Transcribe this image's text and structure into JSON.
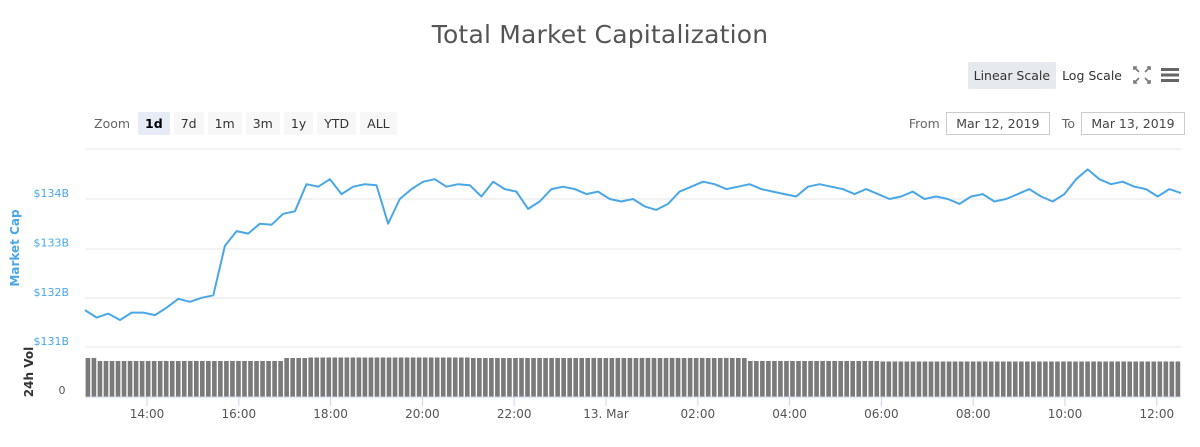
{
  "header": {
    "title": "Total Market Capitalization"
  },
  "toolbar": {
    "linear_scale": "Linear Scale",
    "log_scale": "Log Scale",
    "fullscreen_icon": "fullscreen-icon",
    "menu_icon": "hamburger-menu-icon"
  },
  "zoom": {
    "label": "Zoom",
    "buttons": [
      "1d",
      "7d",
      "1m",
      "3m",
      "1y",
      "YTD",
      "ALL"
    ],
    "active": "1d"
  },
  "range": {
    "from_label": "From",
    "from_value": "Mar 12, 2019",
    "to_label": "To",
    "to_value": "Mar 13, 2019"
  },
  "colors": {
    "line": "#4aa7e6",
    "bars": "#7a7a7a",
    "grid": "#e6e6e6",
    "axis_title_left": "#4aa7e6",
    "axis_title_vol": "#333333"
  },
  "chart_data": {
    "type": "line",
    "title": "Total Market Capitalization",
    "xlabel": "",
    "ylabel": "Market Cap",
    "ylim": [
      131,
      134.9
    ],
    "yticks": [
      "$131B",
      "$132B",
      "$133B",
      "$134B"
    ],
    "xticks": [
      "14:00",
      "16:00",
      "18:00",
      "20:00",
      "22:00",
      "13. Mar",
      "02:00",
      "04:00",
      "06:00",
      "08:00",
      "10:00",
      "12:00"
    ],
    "grid": true,
    "legend": null,
    "series": [
      {
        "name": "Market Cap",
        "unit": "USD billions",
        "x": [
          "13:15",
          "13:30",
          "13:45",
          "14:00",
          "14:15",
          "14:30",
          "14:45",
          "15:00",
          "15:15",
          "15:30",
          "15:45",
          "16:00",
          "16:15",
          "16:30",
          "16:45",
          "17:00",
          "17:15",
          "17:30",
          "17:45",
          "18:00",
          "18:15",
          "18:30",
          "18:45",
          "19:00",
          "19:15",
          "19:30",
          "19:45",
          "20:00",
          "20:15",
          "20:30",
          "20:45",
          "21:00",
          "21:15",
          "21:30",
          "21:45",
          "22:00",
          "22:15",
          "22:30",
          "22:45",
          "23:00",
          "23:15",
          "23:30",
          "23:45",
          "00:00",
          "00:15",
          "00:30",
          "00:45",
          "01:00",
          "01:15",
          "01:30",
          "01:45",
          "02:00",
          "02:15",
          "02:30",
          "02:45",
          "03:00",
          "03:15",
          "03:30",
          "03:45",
          "04:00",
          "04:15",
          "04:30",
          "04:45",
          "05:00",
          "05:15",
          "05:30",
          "05:45",
          "06:00",
          "06:15",
          "06:30",
          "06:45",
          "07:00",
          "07:15",
          "07:30",
          "07:45",
          "08:00",
          "08:15",
          "08:30",
          "08:45",
          "09:00",
          "09:15",
          "09:30",
          "09:45",
          "10:00",
          "10:15",
          "10:30",
          "10:45",
          "11:00",
          "11:15",
          "11:30",
          "11:45",
          "12:00",
          "12:15",
          "12:30",
          "12:45"
        ],
        "values": [
          131.75,
          131.6,
          131.68,
          131.55,
          131.7,
          131.7,
          131.65,
          131.8,
          131.98,
          131.92,
          132.0,
          132.05,
          133.05,
          133.35,
          133.3,
          133.5,
          133.48,
          133.7,
          133.75,
          134.3,
          134.25,
          134.4,
          134.1,
          134.25,
          134.3,
          134.28,
          133.5,
          134.0,
          134.2,
          134.35,
          134.4,
          134.25,
          134.3,
          134.28,
          134.05,
          134.35,
          134.2,
          134.15,
          133.8,
          133.95,
          134.2,
          134.25,
          134.2,
          134.1,
          134.15,
          134.0,
          133.95,
          134.0,
          133.85,
          133.78,
          133.9,
          134.15,
          134.25,
          134.35,
          134.3,
          134.2,
          134.25,
          134.3,
          134.2,
          134.15,
          134.1,
          134.05,
          134.25,
          134.3,
          134.25,
          134.2,
          134.1,
          134.2,
          134.1,
          134.0,
          134.05,
          134.15,
          134.0,
          134.05,
          134.0,
          133.9,
          134.05,
          134.1,
          133.95,
          134.0,
          134.1,
          134.2,
          134.05,
          133.95,
          134.1,
          134.4,
          134.6,
          134.4,
          134.3,
          134.35,
          134.25,
          134.2,
          134.05,
          134.2,
          134.12
        ]
      },
      {
        "name": "24h Vol",
        "type": "bar",
        "ytick_zero": "0",
        "note": "~180 uniform bars of nearly equal height spanning the full day"
      }
    ]
  }
}
